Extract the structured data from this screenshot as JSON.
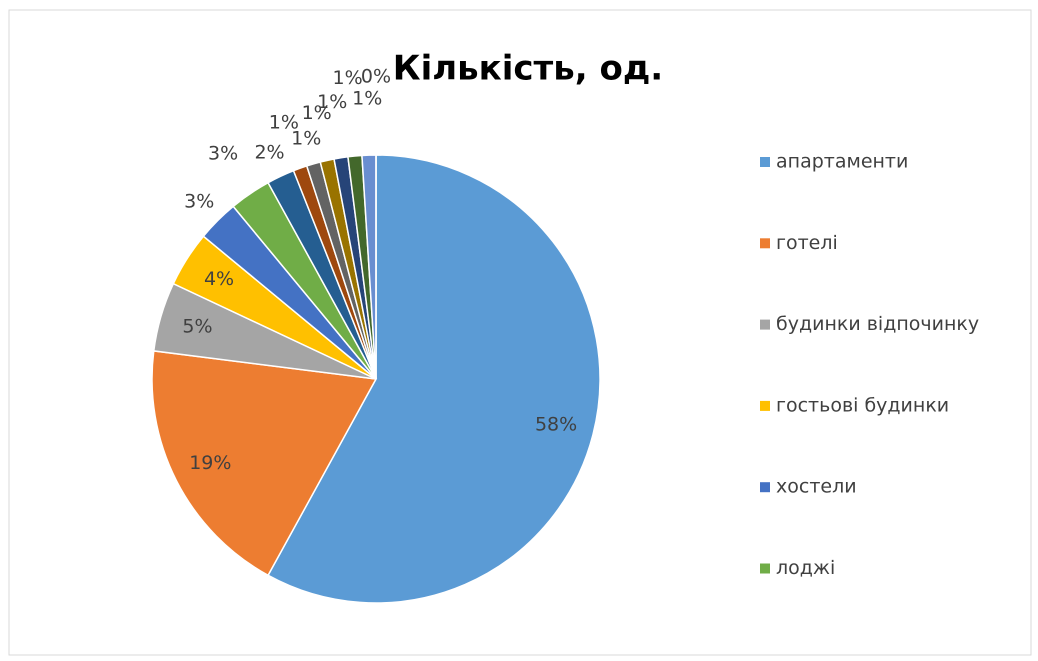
{
  "chart_data": {
    "type": "pie",
    "title": "Кількість, од.",
    "categories": [
      "апартаменти",
      "готелі",
      "будинки відпочинку",
      "гостьові будинки",
      "хостели",
      "лоджі",
      null,
      null,
      null,
      null,
      null,
      null,
      null,
      null
    ],
    "values": [
      58,
      19,
      5,
      4,
      3,
      3,
      2,
      1,
      1,
      1,
      1,
      1,
      1,
      0
    ],
    "value_labels": [
      "58%",
      "19%",
      "5%",
      "4%",
      "3%",
      "3%",
      "2%",
      "1%",
      "1%",
      "1%",
      "1%",
      "1%",
      "1%",
      "0%"
    ],
    "colors": [
      "#5b9bd5",
      "#ed7d31",
      "#a5a5a5",
      "#ffc000",
      "#4472c4",
      "#70ad47",
      "#255e91",
      "#9e480e",
      "#636363",
      "#997300",
      "#264478",
      "#43682b",
      "#698ed0",
      "#f1975a"
    ],
    "legend": "right"
  }
}
